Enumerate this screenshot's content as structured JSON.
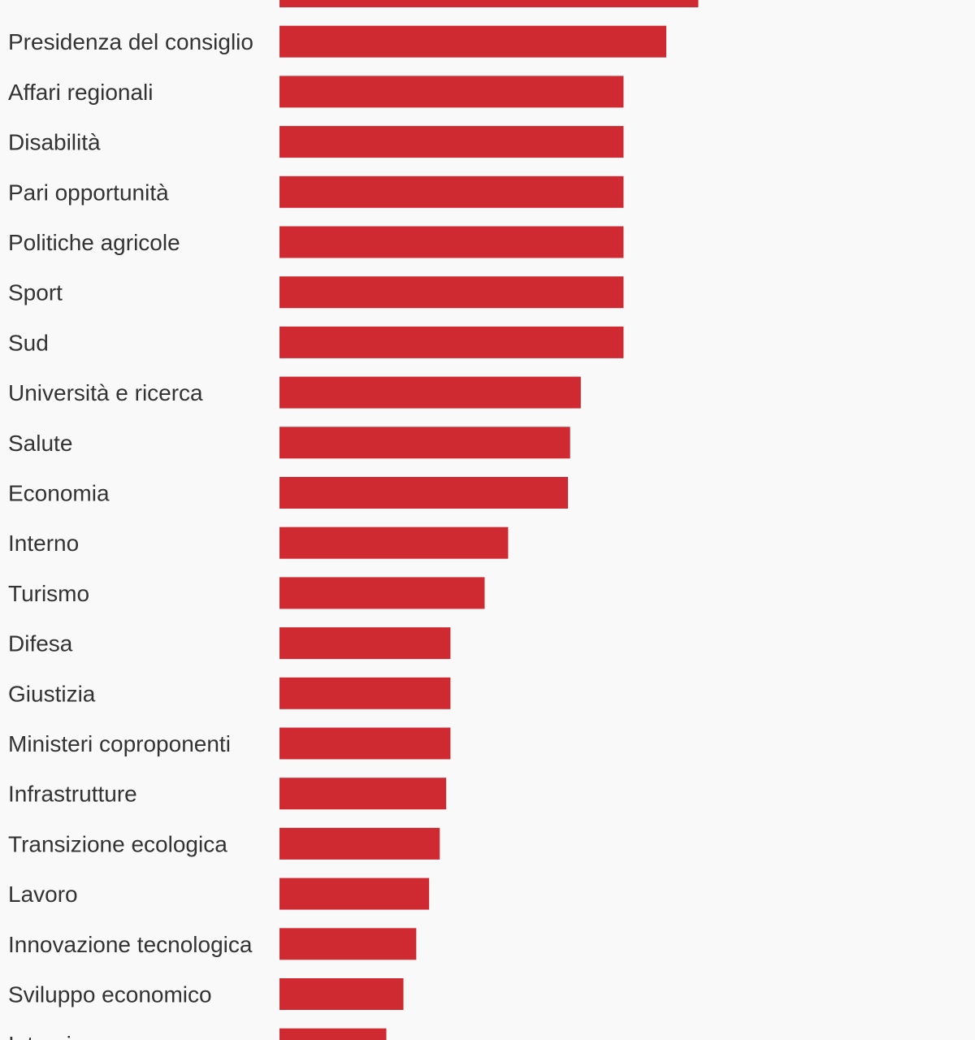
{
  "chart_data": {
    "type": "bar",
    "orientation": "horizontal",
    "title": "",
    "xlabel": "",
    "ylabel": "",
    "categories": [
      "",
      "Presidenza del consiglio",
      "Affari regionali",
      "Disabilità",
      "Pari opportunità",
      "Politiche agricole",
      "Sport",
      "Sud",
      "Università e ricerca",
      "Salute",
      "Economia",
      "Interno",
      "Turismo",
      "Difesa",
      "Giustizia",
      "Ministeri coproponenti",
      "Infrastrutture",
      "Transizione ecologica",
      "Lavoro",
      "Innovazione tecnologica",
      "Sviluppo economico",
      "Interni"
    ],
    "values": [
      19.6,
      18.1,
      16.1,
      16.1,
      16.1,
      16.1,
      16.1,
      16.1,
      14.1,
      13.6,
      13.5,
      10.7,
      9.6,
      8.0,
      8.0,
      8.0,
      7.8,
      7.5,
      7.0,
      6.4,
      5.8,
      5.0
    ],
    "xlim": [
      0,
      30
    ],
    "grid": false,
    "legend": "none",
    "bar_color": "#cf2a32",
    "label_color": "#333333"
  }
}
